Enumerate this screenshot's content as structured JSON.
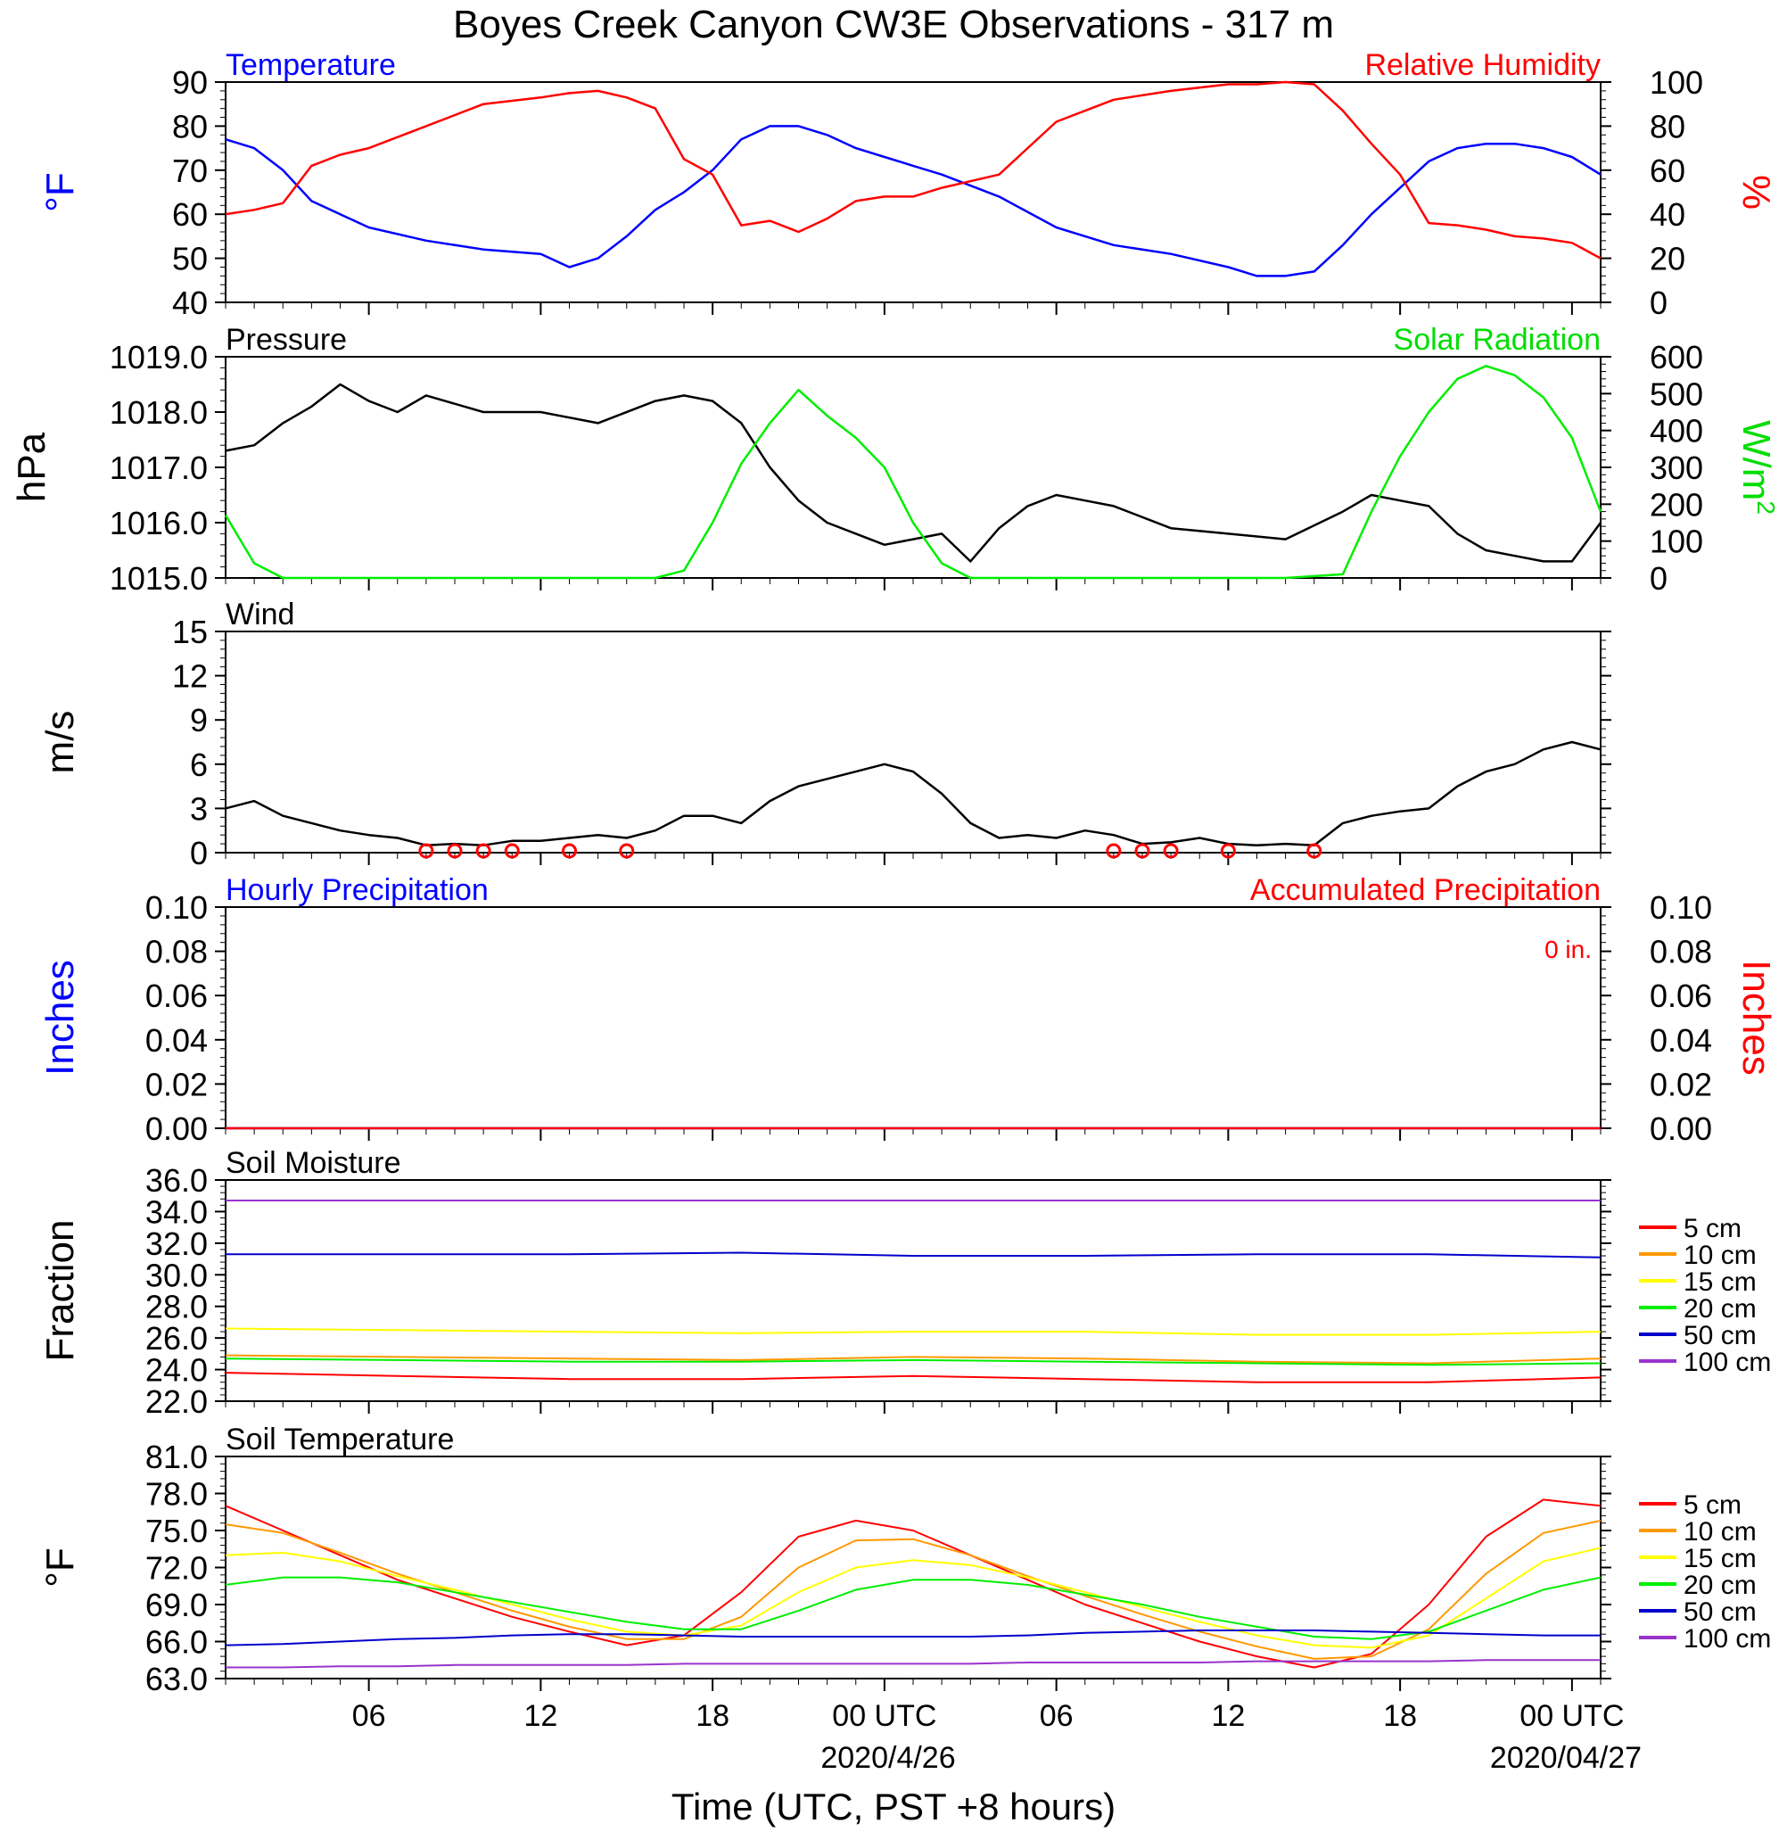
{
  "title": "Boyes Creek Canyon CW3E Observations - 317 m",
  "xaxis": {
    "label": "Time (UTC, PST +8 hours)",
    "ticks": [
      "06",
      "12",
      "18",
      "00 UTC",
      "06",
      "12",
      "18",
      "00 UTC"
    ],
    "dates": [
      "2020/4/26",
      "2020/04/27"
    ]
  },
  "colors": {
    "blue": "#0000ff",
    "red": "#ff0000",
    "green": "#00ee00",
    "black": "#000000",
    "orange": "#ff9900",
    "yellow": "#ffff00",
    "purple": "#9933cc",
    "navy": "#0000cc"
  },
  "chart_data": [
    {
      "type": "line",
      "panel": "temperature_humidity",
      "left_title": "Temperature",
      "right_title": "Relative Humidity",
      "ylabel_left": "°F",
      "ylabel_right": "%",
      "ylim_left": [
        40,
        90
      ],
      "yticks_left": [
        "90",
        "80",
        "70",
        "60",
        "50",
        "40"
      ],
      "ylim_right": [
        0,
        100
      ],
      "yticks_right": [
        "100",
        "80",
        "60",
        "40",
        "20",
        "0"
      ],
      "x_hours": [
        1,
        2,
        3,
        4,
        5,
        6,
        8,
        10,
        12,
        13,
        14,
        15,
        16,
        17,
        18,
        19,
        20,
        21,
        22,
        23,
        24,
        25,
        26,
        28,
        30,
        32,
        34,
        36,
        37,
        38,
        39,
        40,
        41,
        42,
        43,
        44,
        45,
        46,
        47,
        48,
        49
      ],
      "series": [
        {
          "name": "Temperature",
          "axis": "left",
          "color": "#0000ff",
          "values": [
            77,
            75,
            70,
            63,
            60,
            57,
            54,
            52,
            51,
            48,
            50,
            55,
            61,
            65,
            70,
            77,
            80,
            80,
            78,
            75,
            73,
            71,
            69,
            64,
            57,
            53,
            51,
            48,
            46,
            46,
            47,
            53,
            60,
            66,
            72,
            75,
            76,
            76,
            75,
            73,
            69
          ]
        },
        {
          "name": "Relative Humidity",
          "axis": "right",
          "color": "#ff0000",
          "values": [
            40,
            42,
            45,
            62,
            67,
            70,
            80,
            90,
            93,
            95,
            96,
            93,
            88,
            65,
            58,
            35,
            37,
            32,
            38,
            46,
            48,
            48,
            52,
            58,
            82,
            92,
            96,
            99,
            99,
            100,
            99,
            87,
            72,
            58,
            36,
            35,
            33,
            30,
            29,
            27,
            20
          ]
        }
      ]
    },
    {
      "type": "line",
      "panel": "pressure_solar",
      "left_title": "Pressure",
      "right_title": "Solar Radiation",
      "ylabel_left": "hPa",
      "ylabel_right": "W/m",
      "ylabel_right_sup": "2",
      "ylim_left": [
        1015.0,
        1019.0
      ],
      "yticks_left": [
        "1019.0",
        "1018.0",
        "1017.0",
        "1016.0",
        "1015.0"
      ],
      "ylim_right": [
        0,
        600
      ],
      "yticks_right": [
        "600",
        "500",
        "400",
        "300",
        "200",
        "100",
        "0"
      ],
      "x_hours": [
        1,
        2,
        3,
        4,
        5,
        6,
        7,
        8,
        10,
        12,
        14,
        16,
        17,
        18,
        19,
        20,
        21,
        22,
        23,
        24,
        25,
        26,
        27,
        28,
        29,
        30,
        31,
        32,
        34,
        36,
        38,
        40,
        41,
        42,
        43,
        44,
        45,
        46,
        47,
        48,
        49
      ],
      "series": [
        {
          "name": "Pressure",
          "axis": "left",
          "color": "#000000",
          "values": [
            1017.3,
            1017.4,
            1017.8,
            1018.1,
            1018.5,
            1018.2,
            1018.0,
            1018.3,
            1018.0,
            1018.0,
            1017.8,
            1018.2,
            1018.3,
            1018.2,
            1017.8,
            1017.0,
            1016.4,
            1016.0,
            1015.8,
            1015.6,
            1015.7,
            1015.8,
            1015.3,
            1015.9,
            1016.3,
            1016.5,
            1016.4,
            1016.3,
            1015.9,
            1015.8,
            1015.7,
            1016.2,
            1016.5,
            1016.4,
            1016.3,
            1015.8,
            1015.5,
            1015.4,
            1015.3,
            1015.3,
            1016.0
          ]
        },
        {
          "name": "Solar Radiation",
          "axis": "right",
          "color": "#00ee00",
          "values": [
            170,
            40,
            0,
            0,
            0,
            0,
            0,
            0,
            0,
            0,
            0,
            0,
            20,
            150,
            310,
            420,
            510,
            440,
            380,
            300,
            150,
            40,
            0,
            0,
            0,
            0,
            0,
            0,
            0,
            0,
            0,
            10,
            180,
            330,
            450,
            540,
            575,
            550,
            490,
            380,
            180
          ]
        }
      ]
    },
    {
      "type": "line",
      "panel": "wind",
      "left_title": "Wind",
      "ylabel_left": "m/s",
      "ylim_left": [
        0,
        15
      ],
      "yticks_left": [
        "15",
        "12",
        "9",
        "6",
        "3",
        "0"
      ],
      "x_hours": [
        1,
        2,
        3,
        4,
        5,
        6,
        7,
        8,
        9,
        10,
        11,
        12,
        13,
        14,
        15,
        16,
        17,
        18,
        19,
        20,
        21,
        22,
        23,
        24,
        25,
        26,
        27,
        28,
        29,
        30,
        31,
        32,
        33,
        34,
        35,
        36,
        37,
        38,
        39,
        40,
        41,
        42,
        43,
        44,
        45,
        46,
        47,
        48,
        49
      ],
      "series": [
        {
          "name": "Wind speed",
          "axis": "left",
          "color": "#000000",
          "values": [
            3.0,
            3.5,
            2.5,
            2.0,
            1.5,
            1.2,
            1.0,
            0.5,
            0.6,
            0.5,
            0.8,
            0.8,
            1.0,
            1.2,
            1.0,
            1.5,
            2.5,
            2.5,
            2.0,
            3.5,
            4.5,
            5.0,
            5.5,
            6.0,
            5.5,
            4.0,
            2.0,
            1.0,
            1.2,
            1.0,
            1.5,
            1.2,
            0.6,
            0.7,
            1.0,
            0.6,
            0.5,
            0.6,
            0.5,
            2.0,
            2.5,
            2.8,
            3.0,
            4.5,
            5.5,
            6.0,
            7.0,
            7.5,
            7.0
          ]
        }
      ],
      "calm_hours": [
        8,
        9,
        10,
        11,
        13,
        15,
        32,
        33,
        34,
        36,
        39
      ],
      "barb_color": "#ff0000"
    },
    {
      "type": "line",
      "panel": "precipitation",
      "left_title": "Hourly Precipitation",
      "right_title": "Accumulated Precipitation",
      "annotation": "0 in.",
      "ylabel_left": "Inches",
      "ylabel_right": "Inches",
      "ylim_left": [
        0,
        0.1
      ],
      "yticks_left": [
        "0.10",
        "0.08",
        "0.06",
        "0.04",
        "0.02",
        "0.00"
      ],
      "ylim_right": [
        0,
        0.1
      ],
      "yticks_right": [
        "0.10",
        "0.08",
        "0.06",
        "0.04",
        "0.02",
        "0.00"
      ],
      "x_hours": [
        1,
        49
      ],
      "series": [
        {
          "name": "Hourly Precipitation",
          "axis": "left",
          "color": "#0000ff",
          "values": [
            0,
            0
          ]
        },
        {
          "name": "Accumulated Precipitation",
          "axis": "right",
          "color": "#ff0000",
          "values": [
            0,
            0
          ]
        }
      ]
    },
    {
      "type": "line",
      "panel": "soil_moisture",
      "left_title": "Soil Moisture",
      "ylabel_left": "Fraction",
      "ylim_left": [
        22.0,
        36.0
      ],
      "yticks_left": [
        "36.0",
        "34.0",
        "32.0",
        "30.0",
        "28.0",
        "26.0",
        "24.0",
        "22.0"
      ],
      "x_hours": [
        1,
        7,
        13,
        19,
        25,
        31,
        37,
        43,
        49
      ],
      "legend_position": "right",
      "series": [
        {
          "name": "5 cm",
          "color": "#ff0000",
          "values": [
            23.8,
            23.6,
            23.4,
            23.4,
            23.6,
            23.4,
            23.2,
            23.2,
            23.5
          ]
        },
        {
          "name": "10 cm",
          "color": "#ff9900",
          "values": [
            24.9,
            24.8,
            24.7,
            24.6,
            24.8,
            24.7,
            24.5,
            24.4,
            24.7
          ]
        },
        {
          "name": "15 cm",
          "color": "#ffff00",
          "values": [
            26.6,
            26.5,
            26.4,
            26.3,
            26.4,
            26.4,
            26.2,
            26.2,
            26.4
          ]
        },
        {
          "name": "20 cm",
          "color": "#00ee00",
          "values": [
            24.7,
            24.6,
            24.5,
            24.5,
            24.6,
            24.5,
            24.4,
            24.3,
            24.4
          ]
        },
        {
          "name": "50 cm",
          "color": "#0000cc",
          "values": [
            31.3,
            31.3,
            31.3,
            31.4,
            31.2,
            31.2,
            31.3,
            31.3,
            31.1
          ]
        },
        {
          "name": "100 cm",
          "color": "#9933cc",
          "values": [
            34.7,
            34.7,
            34.7,
            34.7,
            34.7,
            34.7,
            34.7,
            34.7,
            34.7
          ]
        }
      ]
    },
    {
      "type": "line",
      "panel": "soil_temperature",
      "left_title": "Soil Temperature",
      "ylabel_left": "°F",
      "ylim_left": [
        63.0,
        81.0
      ],
      "yticks_left": [
        "81.0",
        "78.0",
        "75.0",
        "72.0",
        "69.0",
        "66.0",
        "63.0"
      ],
      "x_hours": [
        1,
        3,
        5,
        7,
        9,
        11,
        13,
        15,
        17,
        19,
        21,
        23,
        25,
        27,
        29,
        31,
        33,
        35,
        37,
        39,
        41,
        43,
        45,
        47,
        49
      ],
      "legend_position": "right",
      "series": [
        {
          "name": "5 cm",
          "color": "#ff0000",
          "values": [
            77.0,
            75.0,
            73.0,
            71.0,
            69.5,
            68.0,
            66.8,
            65.7,
            66.5,
            70.0,
            74.5,
            75.8,
            75.0,
            73.0,
            71.0,
            69.0,
            67.5,
            66.0,
            64.8,
            63.9,
            65.0,
            69.0,
            74.5,
            77.5,
            77.0
          ]
        },
        {
          "name": "10 cm",
          "color": "#ff9900",
          "values": [
            75.5,
            74.8,
            73.2,
            71.5,
            70.0,
            68.5,
            67.2,
            66.2,
            66.2,
            68.0,
            72.0,
            74.2,
            74.3,
            73.0,
            71.3,
            69.7,
            68.2,
            66.8,
            65.6,
            64.6,
            64.8,
            67.0,
            71.5,
            74.8,
            75.8
          ]
        },
        {
          "name": "15 cm",
          "color": "#ffff00",
          "values": [
            73.0,
            73.2,
            72.5,
            71.3,
            70.2,
            69.0,
            67.8,
            66.8,
            66.5,
            67.3,
            70.0,
            72.0,
            72.6,
            72.2,
            71.2,
            70.0,
            68.8,
            67.6,
            66.5,
            65.7,
            65.5,
            66.5,
            69.5,
            72.5,
            73.6
          ]
        },
        {
          "name": "20 cm",
          "color": "#00ee00",
          "values": [
            70.6,
            71.2,
            71.2,
            70.8,
            70.0,
            69.2,
            68.4,
            67.6,
            67.0,
            67.0,
            68.5,
            70.2,
            71.0,
            71.0,
            70.6,
            69.8,
            69.0,
            68.0,
            67.2,
            66.4,
            66.2,
            66.8,
            68.5,
            70.2,
            71.2
          ]
        },
        {
          "name": "50 cm",
          "color": "#0000cc",
          "values": [
            65.7,
            65.8,
            66.0,
            66.2,
            66.3,
            66.5,
            66.6,
            66.6,
            66.5,
            66.4,
            66.4,
            66.4,
            66.4,
            66.4,
            66.5,
            66.7,
            66.8,
            66.9,
            66.9,
            66.9,
            66.8,
            66.7,
            66.6,
            66.5,
            66.5
          ]
        },
        {
          "name": "100 cm",
          "color": "#9933cc",
          "values": [
            63.9,
            63.9,
            64.0,
            64.0,
            64.1,
            64.1,
            64.1,
            64.1,
            64.2,
            64.2,
            64.2,
            64.2,
            64.2,
            64.2,
            64.3,
            64.3,
            64.3,
            64.3,
            64.4,
            64.4,
            64.4,
            64.4,
            64.5,
            64.5,
            64.5
          ]
        }
      ]
    }
  ]
}
